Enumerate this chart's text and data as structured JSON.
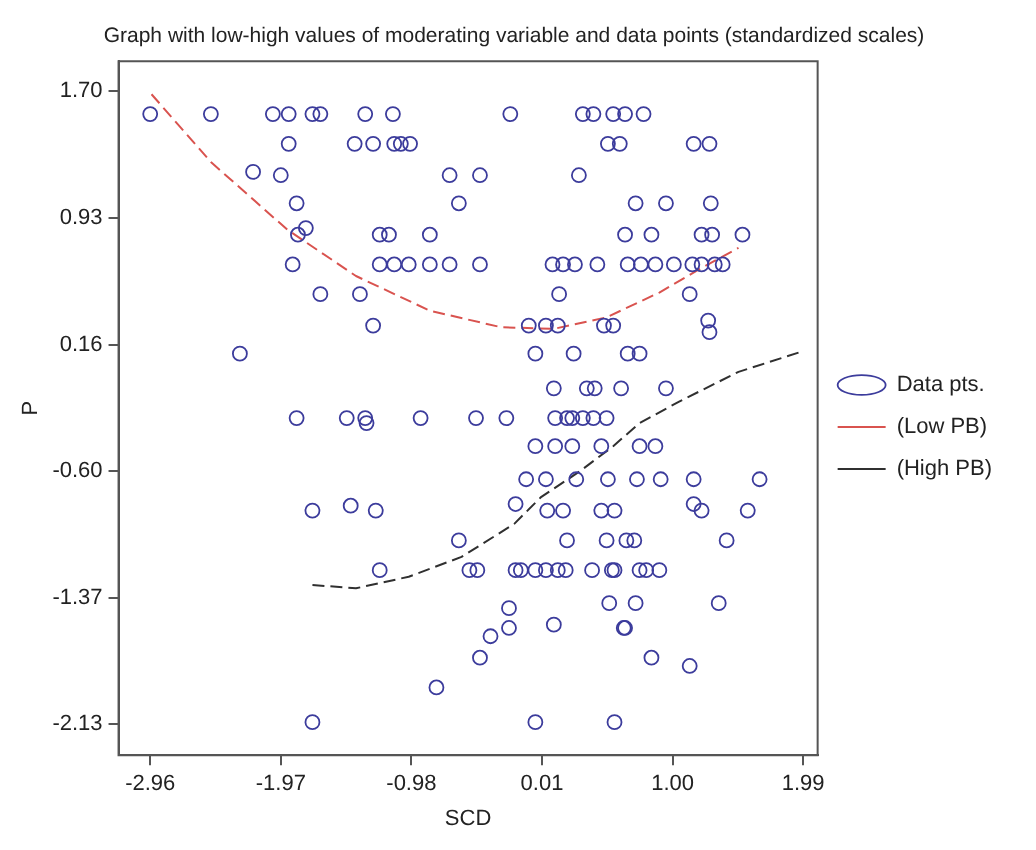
{
  "chart_data": {
    "type": "scatter",
    "title": "Graph with low-high values of moderating variable and data points (standardized scales)",
    "xlabel": "SCD",
    "ylabel": "P",
    "xlim": [
      -3.2,
      2.1
    ],
    "ylim": [
      -2.32,
      1.88
    ],
    "xticks": [
      -2.96,
      -1.97,
      -0.98,
      0.01,
      {
        "value": 1,
        "label": "1.00"
      },
      1.99
    ],
    "yticks": [
      {
        "value": 1.7,
        "label": "1.70"
      },
      0.93,
      0.16,
      {
        "value": -0.6,
        "label": "-0.60"
      },
      -1.37,
      -2.13
    ],
    "grid": false,
    "legend": "right",
    "series": [
      {
        "name": "Data pts.",
        "type": "scatter",
        "color": "#3c3c9c",
        "marker": "circle",
        "x": [
          -2.96,
          -2.5,
          -2.03,
          -1.91,
          -1.73,
          -1.67,
          -1.33,
          -1.12,
          -0.23,
          0.32,
          0.4,
          0.55,
          0.64,
          0.78,
          -1.91,
          -1.41,
          -1.27,
          -1.11,
          -1.06,
          -0.99,
          0.51,
          0.6,
          1.16,
          1.28,
          -2.18,
          -1.97,
          -0.69,
          -0.46,
          0.29,
          -1.85,
          -0.62,
          0.72,
          0.95,
          1.29,
          -1.78,
          -1.84,
          -1.22,
          -1.15,
          -0.84,
          0.64,
          0.84,
          1.22,
          1.3,
          1.53,
          -1.88,
          -1.22,
          -1.11,
          -1.0,
          -0.84,
          -0.69,
          -0.46,
          0.09,
          0.17,
          0.26,
          0.43,
          0.66,
          0.76,
          0.87,
          1.01,
          1.15,
          1.22,
          1.32,
          1.38,
          -1.67,
          -1.37,
          0.14,
          1.13,
          -1.27,
          -0.09,
          0.04,
          0.13,
          0.48,
          0.55,
          1.27,
          1.28,
          -2.28,
          -0.04,
          0.25,
          0.66,
          0.75,
          0.1,
          0.35,
          0.41,
          0.61,
          0.95,
          -1.85,
          -1.47,
          -1.33,
          -0.91,
          -0.49,
          -0.26,
          0.11,
          0.2,
          0.24,
          0.32,
          0.4,
          0.5,
          -1.32,
          -0.04,
          0.11,
          0.24,
          0.46,
          0.75,
          0.87,
          -0.11,
          0.04,
          0.27,
          0.51,
          0.73,
          0.91,
          1.16,
          1.66,
          -0.19,
          1.16,
          0.05,
          0.17,
          0.46,
          0.56,
          1.22,
          1.57,
          -1.73,
          -1.25,
          -1.44,
          -0.62,
          0.2,
          0.5,
          0.65,
          0.71,
          1.41,
          -1.22,
          -0.54,
          -0.48,
          -0.19,
          -0.15,
          -0.04,
          0.04,
          0.13,
          0.19,
          0.39,
          0.54,
          0.56,
          0.75,
          0.8,
          0.9,
          0.52,
          0.72,
          1.35,
          -0.24,
          -0.24,
          0.63,
          0.64,
          0.1,
          -0.38,
          -0.46,
          0.84,
          1.13,
          -0.79,
          -0.04,
          0.56,
          -1.73
        ],
        "values": [
          1.56,
          1.56,
          1.56,
          1.56,
          1.56,
          1.56,
          1.56,
          1.56,
          1.56,
          1.56,
          1.56,
          1.56,
          1.56,
          1.56,
          1.38,
          1.38,
          1.38,
          1.38,
          1.38,
          1.38,
          1.38,
          1.38,
          1.38,
          1.38,
          1.21,
          1.19,
          1.19,
          1.19,
          1.19,
          1.02,
          1.02,
          1.02,
          1.02,
          1.02,
          0.87,
          0.83,
          0.83,
          0.83,
          0.83,
          0.83,
          0.83,
          0.83,
          0.83,
          0.83,
          0.65,
          0.65,
          0.65,
          0.65,
          0.65,
          0.65,
          0.65,
          0.65,
          0.65,
          0.65,
          0.65,
          0.65,
          0.65,
          0.65,
          0.65,
          0.65,
          0.65,
          0.65,
          0.65,
          0.47,
          0.47,
          0.47,
          0.47,
          0.28,
          0.28,
          0.28,
          0.28,
          0.28,
          0.28,
          0.31,
          0.24,
          0.11,
          0.11,
          0.11,
          0.11,
          0.11,
          -0.1,
          -0.1,
          -0.1,
          -0.1,
          -0.1,
          -0.28,
          -0.28,
          -0.28,
          -0.28,
          -0.28,
          -0.28,
          -0.28,
          -0.28,
          -0.28,
          -0.28,
          -0.28,
          -0.28,
          -0.31,
          -0.45,
          -0.45,
          -0.45,
          -0.45,
          -0.45,
          -0.45,
          -0.65,
          -0.65,
          -0.65,
          -0.65,
          -0.65,
          -0.65,
          -0.65,
          -0.65,
          -0.8,
          -0.8,
          -0.84,
          -0.84,
          -0.84,
          -0.84,
          -0.84,
          -0.84,
          -0.84,
          -0.84,
          -0.81,
          -1.02,
          -1.02,
          -1.02,
          -1.02,
          -1.02,
          -1.02,
          -1.2,
          -1.2,
          -1.2,
          -1.2,
          -1.2,
          -1.2,
          -1.2,
          -1.2,
          -1.2,
          -1.2,
          -1.2,
          -1.2,
          -1.2,
          -1.2,
          -1.2,
          -1.4,
          -1.4,
          -1.4,
          -1.43,
          -1.55,
          -1.55,
          -1.55,
          -1.53,
          -1.6,
          -1.73,
          -1.73,
          -1.78,
          -1.91,
          -2.12,
          -2.12,
          -2.12
        ]
      },
      {
        "name": "(Low PB)",
        "type": "line",
        "color": "#d9534f",
        "marker": "none",
        "line_style": "dashed",
        "x": [
          -2.95,
          -2.5,
          -1.92,
          -1.4,
          -0.84,
          -0.3,
          0.1,
          0.5,
          0.9,
          1.2,
          1.5
        ],
        "values": [
          1.68,
          1.27,
          0.86,
          0.58,
          0.37,
          0.27,
          0.26,
          0.33,
          0.48,
          0.62,
          0.75
        ]
      },
      {
        "name": "(High PB)",
        "type": "line",
        "color": "#303030",
        "marker": "none",
        "line_style": "dashed",
        "x": [
          -1.73,
          -1.4,
          -1.0,
          -0.6,
          -0.2,
          0.0,
          0.3,
          0.55,
          0.75,
          1.05,
          1.5,
          1.97
        ],
        "values": [
          -1.29,
          -1.31,
          -1.24,
          -1.12,
          -0.92,
          -0.76,
          -0.6,
          -0.45,
          -0.31,
          -0.18,
          0.0,
          0.12
        ]
      }
    ]
  }
}
